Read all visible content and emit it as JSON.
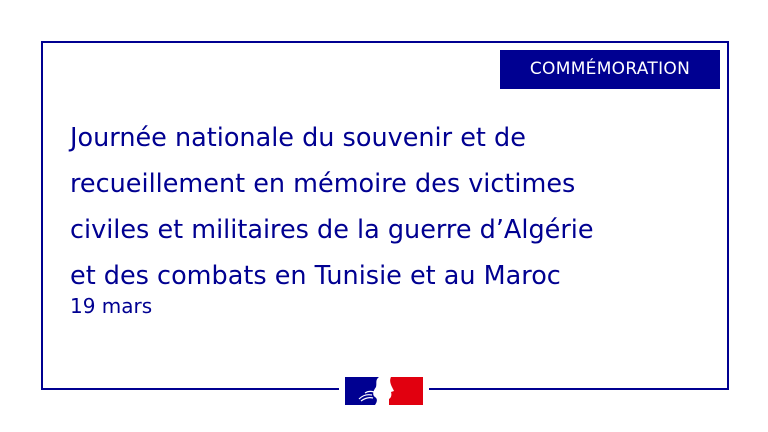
{
  "badge": "COMMÉMORATION",
  "title_lines": [
    "Journée nationale du souvenir et de",
    "recueillement en mémoire des victimes",
    "civiles et militaires de la guerre d’Algérie",
    "et des combats en Tunisie et au Maroc"
  ],
  "date": "19 mars",
  "colors": {
    "primary": "#000091",
    "red": "#e1000f",
    "background": "#ffffff"
  },
  "logo": "republique-francaise-marianne-logo"
}
